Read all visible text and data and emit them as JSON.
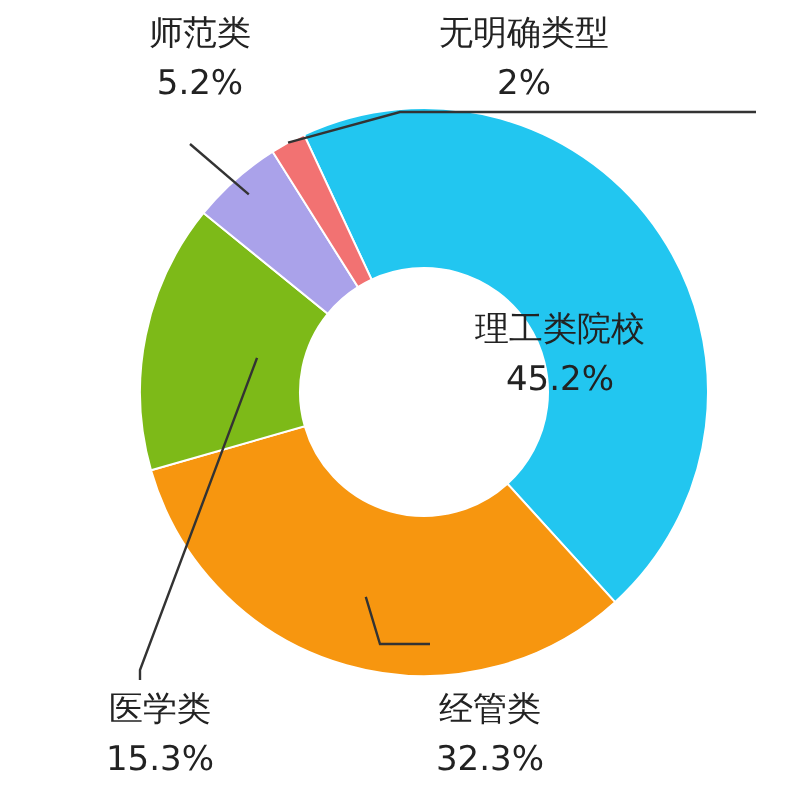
{
  "chart_data": {
    "type": "donut",
    "categories": [
      "理工类院校",
      "经管类",
      "医学类",
      "师范类",
      "无明确类型"
    ],
    "values": [
      45.2,
      32.3,
      15.3,
      5.2,
      2
    ],
    "value_labels": [
      "45.2%",
      "32.3%",
      "15.3%",
      "5.2%",
      "2%"
    ],
    "colors": [
      "#22c6f0",
      "#f7960f",
      "#7dba18",
      "#aaa2ea",
      "#f27272"
    ]
  }
}
